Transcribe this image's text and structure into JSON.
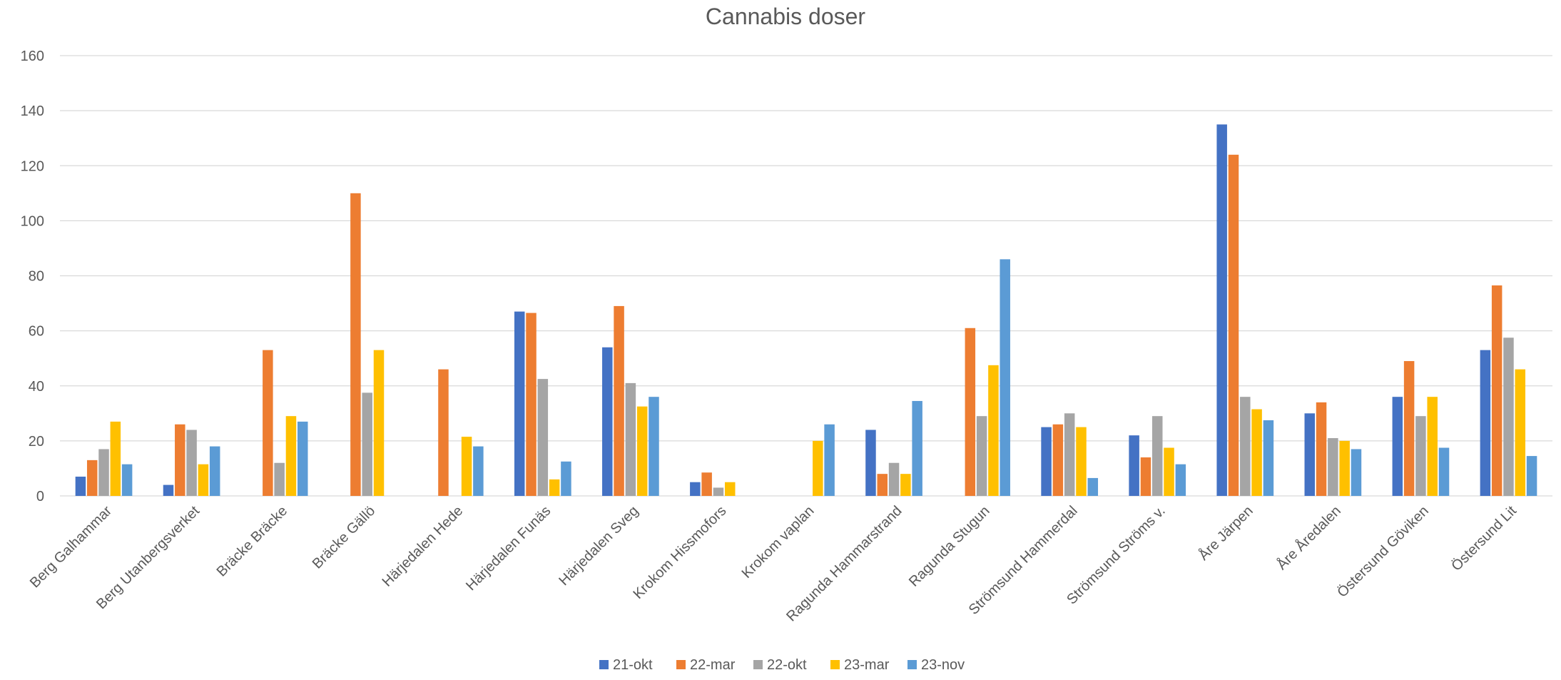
{
  "chart_data": {
    "type": "bar",
    "title": "Cannabis doser",
    "xlabel": "",
    "ylabel": "",
    "ylim": [
      0,
      160
    ],
    "yticks": [
      0,
      20,
      40,
      60,
      80,
      100,
      120,
      140,
      160
    ],
    "grid": true,
    "legend_position": "bottom",
    "categories": [
      "Berg Galhammar",
      "Berg Utanbergsverket",
      "Bräcke Bräcke",
      "Bräcke Gällö",
      "Härjedalen Hede",
      "Härjedalen Funäs",
      "Härjedalen Sveg",
      "Krokom Hissmofors",
      "Krokom vaplan",
      "Ragunda Hammarstrand",
      "Ragunda Stugun",
      "Strömsund Hammerdal",
      "Strömsund Ströms v.",
      "Åre Järpen",
      "Åre Åredalen",
      "Östersund Göviken",
      "Östersund Lit"
    ],
    "series": [
      {
        "name": "21-okt",
        "color": "#4472c4",
        "values": [
          7,
          4,
          null,
          null,
          null,
          67,
          54,
          5,
          null,
          24,
          null,
          25,
          22,
          135,
          30,
          36,
          53
        ]
      },
      {
        "name": "22-mar",
        "color": "#ed7d31",
        "values": [
          13,
          26,
          53,
          110,
          46,
          66.5,
          69,
          8.5,
          null,
          8,
          61,
          26,
          14,
          124,
          34,
          49,
          76.5
        ]
      },
      {
        "name": "22-okt",
        "color": "#a5a5a5",
        "values": [
          17,
          24,
          12,
          37.5,
          null,
          42.5,
          41,
          3,
          null,
          12,
          29,
          30,
          29,
          36,
          21,
          29,
          57.5
        ]
      },
      {
        "name": "23-mar",
        "color": "#ffc000",
        "values": [
          27,
          11.5,
          29,
          53,
          21.5,
          6,
          32.5,
          5,
          20,
          8,
          47.5,
          25,
          17.5,
          31.5,
          20,
          36,
          46
        ]
      },
      {
        "name": "23-nov",
        "color": "#5b9bd5",
        "values": [
          11.5,
          18,
          27,
          null,
          18,
          12.5,
          36,
          null,
          26,
          34.5,
          86,
          6.5,
          11.5,
          27.5,
          17,
          17.5,
          14.5
        ]
      }
    ]
  }
}
